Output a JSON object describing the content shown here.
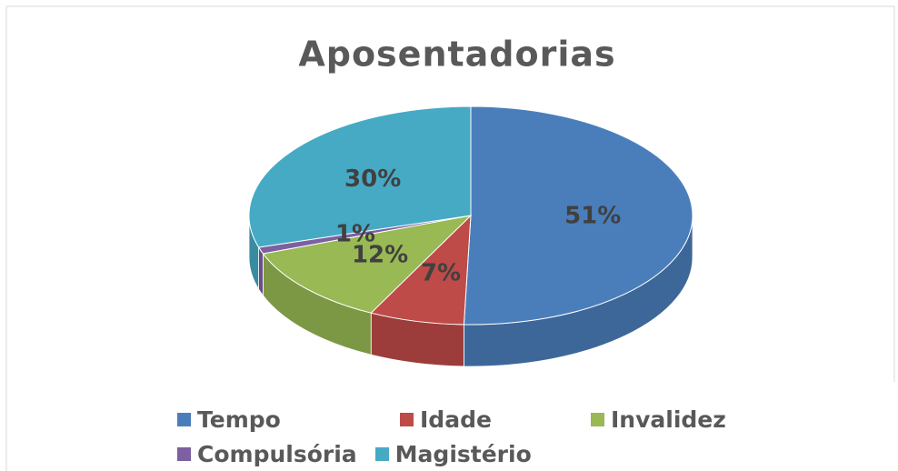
{
  "chart_data": {
    "type": "pie",
    "title": "Aposentadorias",
    "categories": [
      "Tempo",
      "Idade",
      "Invalidez",
      "Compulsória",
      "Magistério"
    ],
    "values": [
      51,
      7,
      12,
      1,
      30
    ],
    "value_labels": [
      "51%",
      "7%",
      "12%",
      "1%",
      "30%"
    ],
    "colors": [
      "#4a7ebb",
      "#be4b48",
      "#98b954",
      "#7d60a0",
      "#46aac5"
    ],
    "legend": "bottom"
  }
}
